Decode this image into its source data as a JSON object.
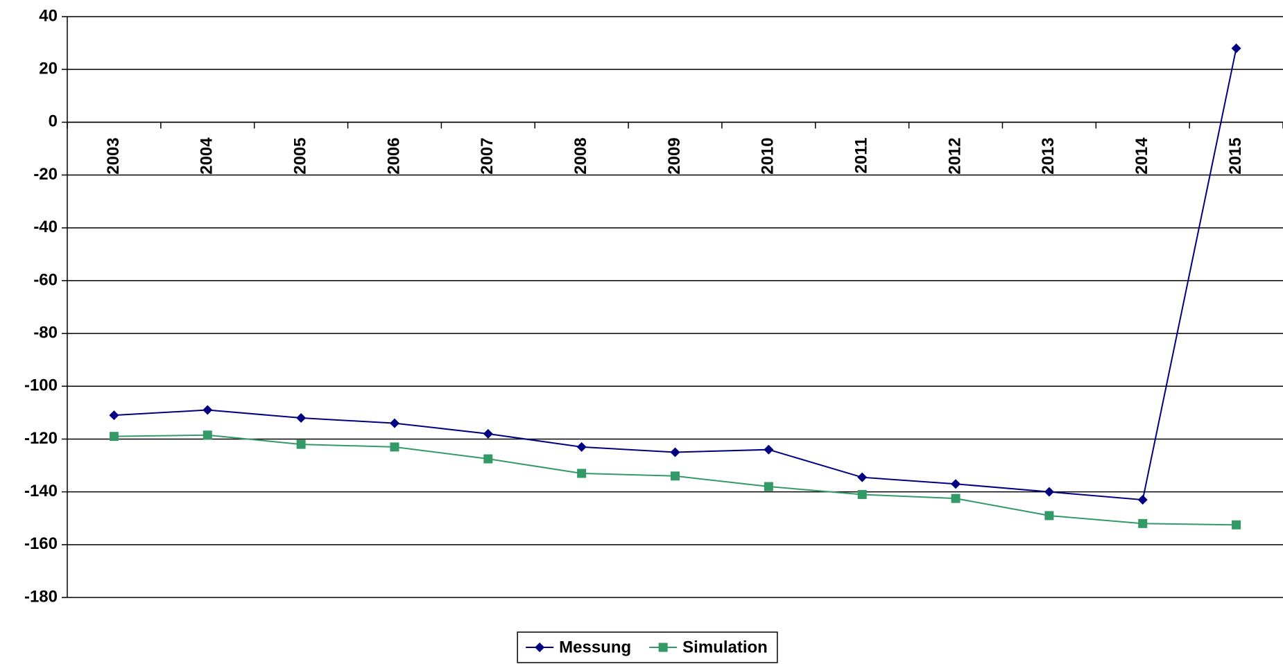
{
  "chart_data": {
    "type": "line",
    "categories": [
      "2003",
      "2004",
      "2005",
      "2006",
      "2007",
      "2008",
      "2009",
      "2010",
      "2011",
      "2012",
      "2013",
      "2014",
      "2015"
    ],
    "series": [
      {
        "name": "Messung",
        "color": "#000080",
        "marker": "diamond",
        "values": [
          -111,
          -109,
          -112,
          -114,
          -118,
          -123,
          -125,
          -124,
          -134.5,
          -137,
          -140,
          -143,
          28
        ]
      },
      {
        "name": "Simulation",
        "color": "#339966",
        "marker": "square",
        "values": [
          -119,
          -118.5,
          -122,
          -123,
          -127.5,
          -133,
          -134,
          -138,
          -141,
          -142.5,
          -149,
          -152,
          -152.5
        ]
      }
    ],
    "ylim": [
      -180,
      40
    ],
    "yticks": [
      -180,
      -160,
      -140,
      -120,
      -100,
      -80,
      -60,
      -40,
      -20,
      0,
      20,
      40
    ],
    "grid": true,
    "legend": "bottom"
  }
}
